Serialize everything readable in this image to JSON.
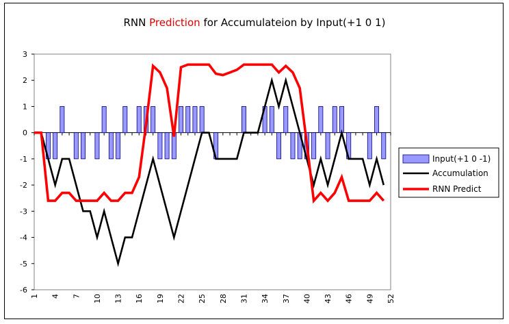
{
  "chart_data": {
    "type": "bar+line",
    "title_parts": [
      "RNN ",
      "Prediction",
      " for Accumulateion by Input(+1 0 1)"
    ],
    "title_colors": [
      "#000000",
      "#e00000",
      "#000000"
    ],
    "ylim": [
      -6,
      3
    ],
    "yticks": [
      3,
      2,
      1,
      0,
      -1,
      -2,
      -3,
      -4,
      -5,
      -6
    ],
    "x": [
      1,
      2,
      3,
      4,
      5,
      6,
      7,
      8,
      9,
      10,
      11,
      12,
      13,
      14,
      15,
      16,
      17,
      18,
      19,
      20,
      21,
      22,
      23,
      24,
      25,
      26,
      27,
      28,
      29,
      30,
      31,
      32,
      33,
      34,
      35,
      36,
      37,
      38,
      39,
      40,
      41,
      42,
      43,
      44,
      45,
      46,
      47,
      48,
      49,
      50,
      51
    ],
    "xtick_labels": [
      "1",
      "4",
      "7",
      "10",
      "13",
      "16",
      "19",
      "22",
      "25",
      "28",
      "31",
      "34",
      "37",
      "40",
      "43",
      "46",
      "49",
      "52"
    ],
    "xtick_positions": [
      1,
      4,
      7,
      10,
      13,
      16,
      19,
      22,
      25,
      28,
      31,
      34,
      37,
      40,
      43,
      46,
      49,
      52
    ],
    "grid": false,
    "legend_position": "right",
    "series": [
      {
        "name": "Input(+1 0 -1)",
        "type": "bar",
        "color": "#9999ff",
        "values": [
          0,
          0,
          -1,
          -1,
          1,
          0,
          -1,
          -1,
          0,
          -1,
          1,
          -1,
          -1,
          1,
          0,
          1,
          1,
          1,
          -1,
          -1,
          -1,
          1,
          1,
          1,
          1,
          0,
          -1,
          0,
          0,
          0,
          1,
          0,
          0,
          1,
          1,
          -1,
          1,
          -1,
          -1,
          -1,
          -1,
          1,
          -1,
          1,
          1,
          -1,
          0,
          0,
          -1,
          1,
          -1
        ]
      },
      {
        "name": "Accumulation",
        "type": "line",
        "color": "#000000",
        "values": [
          0,
          0,
          -1,
          -2,
          -1,
          -1,
          -2,
          -3,
          -3,
          -4,
          -3,
          -4,
          -5,
          -4,
          -4,
          -3,
          -2,
          -1,
          -2,
          -3,
          -4,
          -3,
          -2,
          -1,
          0,
          0,
          -1,
          -1,
          -1,
          -1,
          0,
          0,
          0,
          1,
          2,
          1,
          2,
          1,
          0,
          -1,
          -2,
          -1,
          -2,
          -1,
          0,
          -1,
          -1,
          -1,
          -2,
          -1,
          -2
        ]
      },
      {
        "name": "RNN Predict",
        "type": "line",
        "color": "#ff0000",
        "values": [
          0,
          0,
          -2.6,
          -2.6,
          -2.3,
          -2.3,
          -2.6,
          -2.6,
          -2.6,
          -2.6,
          -2.3,
          -2.6,
          -2.6,
          -2.3,
          -2.3,
          -1.7,
          0.3,
          2.55,
          2.3,
          1.7,
          -0.15,
          2.5,
          2.6,
          2.6,
          2.6,
          2.6,
          2.25,
          2.2,
          2.3,
          2.4,
          2.6,
          2.6,
          2.6,
          2.6,
          2.6,
          2.3,
          2.55,
          2.3,
          1.7,
          -0.4,
          -2.6,
          -2.3,
          -2.6,
          -2.3,
          -1.7,
          -2.6,
          -2.6,
          -2.6,
          -2.6,
          -2.3,
          -2.6
        ]
      }
    ]
  }
}
